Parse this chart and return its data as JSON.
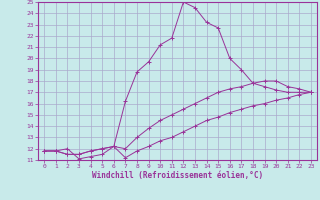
{
  "xlabel": "Windchill (Refroidissement éolien,°C)",
  "bg_color": "#c8eaea",
  "grid_color": "#aaaacc",
  "line_color": "#993399",
  "xlim": [
    -0.5,
    23.5
  ],
  "ylim": [
    11,
    25
  ],
  "xticks": [
    0,
    1,
    2,
    3,
    4,
    5,
    6,
    7,
    8,
    9,
    10,
    11,
    12,
    13,
    14,
    15,
    16,
    17,
    18,
    19,
    20,
    21,
    22,
    23
  ],
  "yticks": [
    11,
    12,
    13,
    14,
    15,
    16,
    17,
    18,
    19,
    20,
    21,
    22,
    23,
    24,
    25
  ],
  "lines": [
    {
      "x": [
        0,
        1,
        2,
        3,
        4,
        5,
        6,
        7,
        8,
        9,
        10,
        11,
        12,
        13,
        14,
        15,
        16,
        17,
        18,
        19,
        20,
        21,
        22,
        23
      ],
      "y": [
        11.8,
        11.8,
        12.0,
        11.1,
        11.3,
        11.5,
        12.2,
        16.2,
        18.8,
        19.7,
        21.2,
        21.8,
        25.0,
        24.5,
        23.2,
        22.7,
        20.0,
        19.0,
        17.8,
        17.5,
        17.2,
        17.0,
        17.0,
        17.0
      ]
    },
    {
      "x": [
        0,
        1,
        2,
        3,
        4,
        5,
        6,
        7,
        8,
        9,
        10,
        11,
        12,
        13,
        14,
        15,
        16,
        17,
        18,
        19,
        20,
        21,
        22,
        23
      ],
      "y": [
        11.8,
        11.8,
        11.5,
        11.5,
        11.8,
        12.0,
        12.2,
        12.0,
        13.0,
        13.8,
        14.5,
        15.0,
        15.5,
        16.0,
        16.5,
        17.0,
        17.3,
        17.5,
        17.8,
        18.0,
        18.0,
        17.5,
        17.3,
        17.0
      ]
    },
    {
      "x": [
        0,
        1,
        2,
        3,
        4,
        5,
        6,
        7,
        8,
        9,
        10,
        11,
        12,
        13,
        14,
        15,
        16,
        17,
        18,
        19,
        20,
        21,
        22,
        23
      ],
      "y": [
        11.8,
        11.8,
        11.5,
        11.5,
        11.8,
        12.0,
        12.2,
        11.2,
        11.8,
        12.2,
        12.7,
        13.0,
        13.5,
        14.0,
        14.5,
        14.8,
        15.2,
        15.5,
        15.8,
        16.0,
        16.3,
        16.5,
        16.8,
        17.0
      ]
    }
  ]
}
